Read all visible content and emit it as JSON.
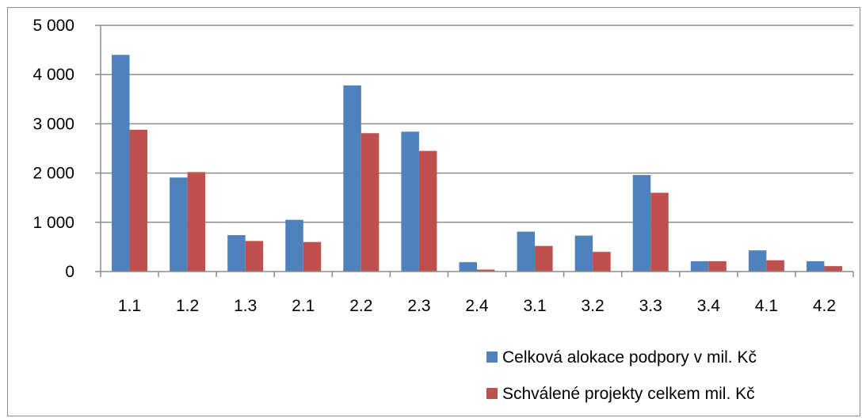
{
  "chart_data": {
    "type": "bar",
    "categories": [
      "1.1",
      "1.2",
      "1.3",
      "2.1",
      "2.2",
      "2.3",
      "2.4",
      "3.1",
      "3.2",
      "3.3",
      "3.4",
      "4.1",
      "4.2"
    ],
    "series": [
      {
        "name": "Celková alokace podpory v mil. Kč",
        "color": "#4f81bd",
        "values": [
          4400,
          1910,
          740,
          1050,
          3780,
          2840,
          190,
          810,
          730,
          1960,
          210,
          430,
          210
        ]
      },
      {
        "name": "Schválené projekty celkem  mil. Kč",
        "color": "#c0504d",
        "values": [
          2880,
          2020,
          620,
          600,
          2810,
          2450,
          40,
          520,
          400,
          1600,
          210,
          230,
          110
        ]
      }
    ],
    "yticks": [
      0,
      1000,
      2000,
      3000,
      4000,
      5000
    ],
    "ytick_labels": [
      "0",
      "1 000",
      "2 000",
      "3 000",
      "4 000",
      "5 000"
    ],
    "ylim": [
      0,
      5000
    ],
    "grid": true,
    "legend_position": "bottom-right",
    "title": "",
    "xlabel": "",
    "ylabel": "",
    "gridline_color": "#8c8c8c",
    "axis_color": "#8c8c8c"
  }
}
